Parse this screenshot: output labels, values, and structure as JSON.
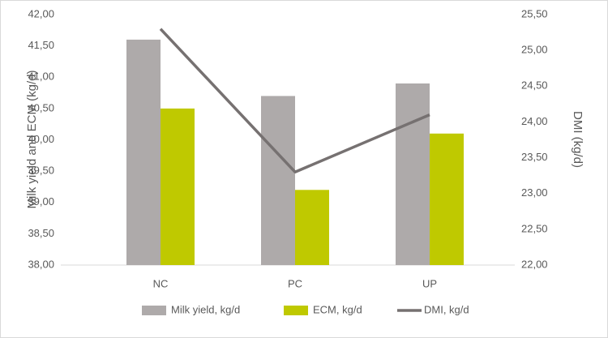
{
  "chart_data": {
    "type": "bar",
    "categories": [
      "NC",
      "PC",
      "UP"
    ],
    "series": [
      {
        "name": "Milk yield, kg/d",
        "color": "#aeaaaa",
        "values": [
          41.6,
          40.7,
          40.9
        ]
      },
      {
        "name": "ECM, kg/d",
        "color": "#bfc900",
        "values": [
          40.5,
          39.2,
          40.1
        ]
      },
      {
        "name": "DMI, kg/d",
        "color": "#767171",
        "type": "line",
        "axis": "y2",
        "values": [
          25.3,
          23.3,
          24.1
        ]
      }
    ],
    "ylabel": "Milk yield and ECM (kg/d)",
    "y2label": "DMI (kg/d)",
    "ylim": [
      38,
      42
    ],
    "yticks": [
      {
        "value": 38,
        "label": "38,00"
      },
      {
        "value": 38.5,
        "label": "38,50"
      },
      {
        "value": 39,
        "label": "39,00"
      },
      {
        "value": 39.5,
        "label": "39,50"
      },
      {
        "value": 40,
        "label": "40,00"
      },
      {
        "value": 40.5,
        "label": "40,50"
      },
      {
        "value": 41,
        "label": "41,00"
      },
      {
        "value": 41.5,
        "label": "41,50"
      },
      {
        "value": 42,
        "label": "42,00"
      }
    ],
    "y2lim": [
      22,
      25.5
    ],
    "y2ticks": [
      {
        "value": 22,
        "label": "22,00"
      },
      {
        "value": 22.5,
        "label": "22,50"
      },
      {
        "value": 23,
        "label": "23,00"
      },
      {
        "value": 23.5,
        "label": "23,50"
      },
      {
        "value": 24,
        "label": "24,00"
      },
      {
        "value": 24.5,
        "label": "24,50"
      },
      {
        "value": 25,
        "label": "25,00"
      },
      {
        "value": 25.5,
        "label": "25,50"
      }
    ],
    "legend": "bottom"
  }
}
